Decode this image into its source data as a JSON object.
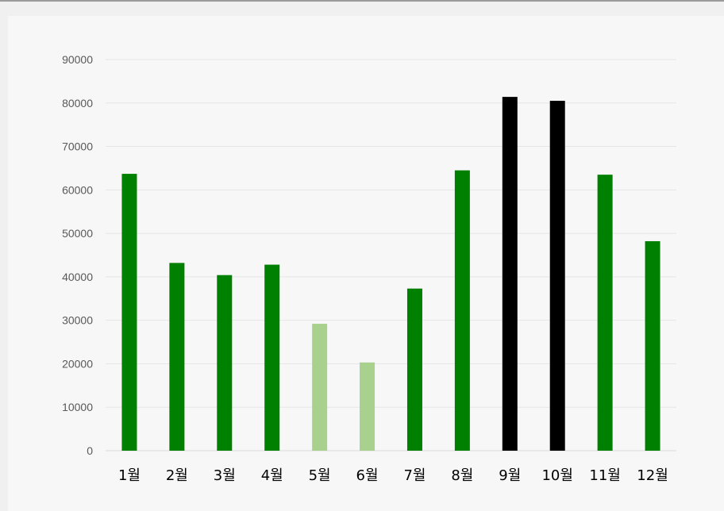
{
  "chart_data": {
    "type": "bar",
    "title": "",
    "xlabel": "",
    "ylabel": "",
    "categories": [
      "1월",
      "2월",
      "3월",
      "4월",
      "5월",
      "6월",
      "7월",
      "8월",
      "9월",
      "10월",
      "11월",
      "12월"
    ],
    "values": [
      63700,
      43200,
      40400,
      42800,
      29200,
      20300,
      37300,
      64500,
      81400,
      80500,
      63500,
      48200
    ],
    "colors": [
      "#008000",
      "#008000",
      "#008000",
      "#008000",
      "#a9d18e",
      "#a9d18e",
      "#008000",
      "#008000",
      "#000000",
      "#000000",
      "#008000",
      "#008000"
    ],
    "ylim": [
      0,
      90000
    ],
    "yticks": [
      0,
      10000,
      20000,
      30000,
      40000,
      50000,
      60000,
      70000,
      80000,
      90000
    ],
    "grid": true,
    "legend": "none"
  }
}
